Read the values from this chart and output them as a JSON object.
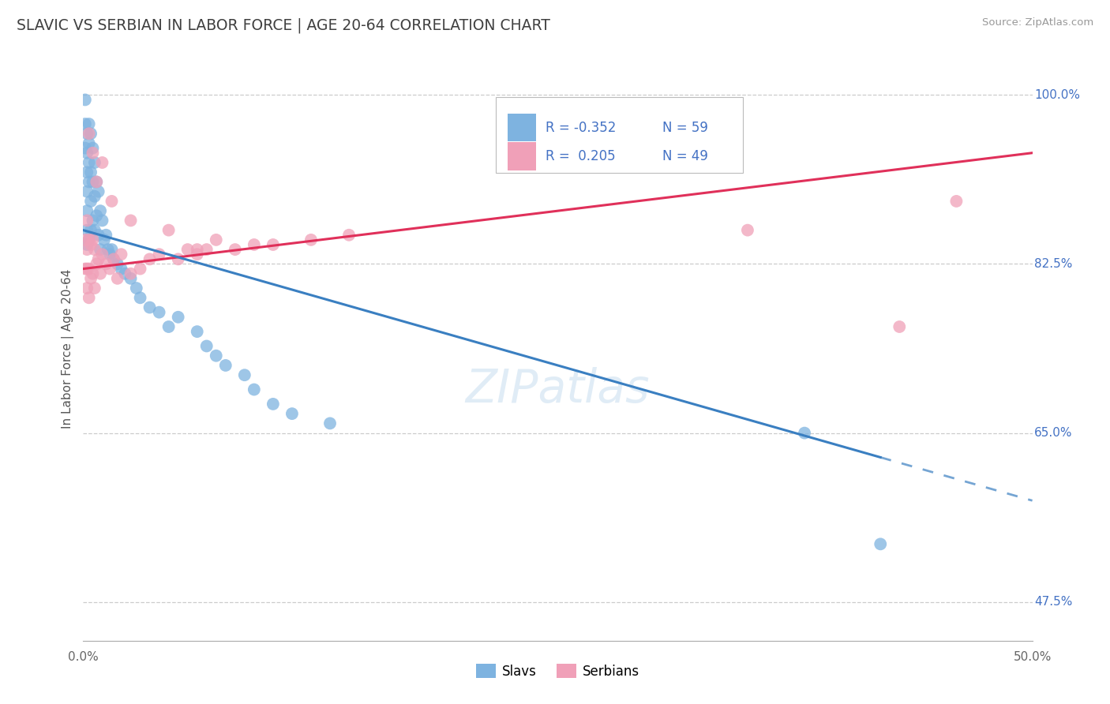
{
  "title": "SLAVIC VS SERBIAN IN LABOR FORCE | AGE 20-64 CORRELATION CHART",
  "source": "Source: ZipAtlas.com",
  "ylabel": "In Labor Force | Age 20-64",
  "xlim": [
    0.0,
    0.5
  ],
  "ylim": [
    0.435,
    1.04
  ],
  "xticks": [
    0.0,
    0.1,
    0.2,
    0.3,
    0.4,
    0.5
  ],
  "xticklabels": [
    "0.0%",
    "",
    "",
    "",
    "",
    "50.0%"
  ],
  "yticks": [
    0.475,
    0.65,
    0.825,
    1.0
  ],
  "yticklabels": [
    "47.5%",
    "65.0%",
    "82.5%",
    "100.0%"
  ],
  "color_slavs": "#7eb3e0",
  "color_serbians": "#f0a0b8",
  "color_trend_slavs": "#3a7fc1",
  "color_trend_serbians": "#e0305a",
  "color_title": "#404040",
  "color_axis_labels": "#555555",
  "color_tick_right": "#4472c4",
  "background_color": "#ffffff",
  "grid_color": "#cccccc",
  "slavs_x": [
    0.001,
    0.001,
    0.001,
    0.002,
    0.002,
    0.002,
    0.002,
    0.002,
    0.002,
    0.002,
    0.003,
    0.003,
    0.003,
    0.003,
    0.003,
    0.004,
    0.004,
    0.004,
    0.004,
    0.005,
    0.005,
    0.005,
    0.006,
    0.006,
    0.006,
    0.007,
    0.007,
    0.008,
    0.008,
    0.009,
    0.009,
    0.01,
    0.011,
    0.012,
    0.013,
    0.014,
    0.015,
    0.016,
    0.018,
    0.02,
    0.022,
    0.025,
    0.028,
    0.03,
    0.035,
    0.04,
    0.045,
    0.05,
    0.06,
    0.065,
    0.07,
    0.075,
    0.085,
    0.09,
    0.1,
    0.11,
    0.13,
    0.38,
    0.42
  ],
  "slavs_y": [
    0.945,
    0.97,
    0.995,
    0.96,
    0.94,
    0.92,
    0.9,
    0.88,
    0.86,
    0.845,
    0.97,
    0.95,
    0.93,
    0.91,
    0.85,
    0.96,
    0.92,
    0.89,
    0.86,
    0.945,
    0.91,
    0.87,
    0.93,
    0.895,
    0.86,
    0.91,
    0.875,
    0.9,
    0.855,
    0.88,
    0.84,
    0.87,
    0.85,
    0.855,
    0.84,
    0.835,
    0.84,
    0.83,
    0.825,
    0.82,
    0.815,
    0.81,
    0.8,
    0.79,
    0.78,
    0.775,
    0.76,
    0.77,
    0.755,
    0.74,
    0.73,
    0.72,
    0.71,
    0.695,
    0.68,
    0.67,
    0.66,
    0.65,
    0.535
  ],
  "serbians_x": [
    0.001,
    0.001,
    0.002,
    0.002,
    0.002,
    0.002,
    0.003,
    0.003,
    0.003,
    0.004,
    0.004,
    0.005,
    0.005,
    0.006,
    0.006,
    0.007,
    0.008,
    0.009,
    0.01,
    0.012,
    0.014,
    0.016,
    0.018,
    0.02,
    0.025,
    0.03,
    0.035,
    0.04,
    0.05,
    0.055,
    0.06,
    0.065,
    0.07,
    0.08,
    0.09,
    0.1,
    0.12,
    0.14,
    0.43,
    0.46,
    0.003,
    0.005,
    0.007,
    0.01,
    0.015,
    0.025,
    0.045,
    0.06,
    0.35
  ],
  "serbians_y": [
    0.85,
    0.82,
    0.87,
    0.84,
    0.82,
    0.8,
    0.85,
    0.82,
    0.79,
    0.845,
    0.81,
    0.85,
    0.815,
    0.84,
    0.8,
    0.825,
    0.83,
    0.815,
    0.835,
    0.825,
    0.82,
    0.83,
    0.81,
    0.835,
    0.815,
    0.82,
    0.83,
    0.835,
    0.83,
    0.84,
    0.835,
    0.84,
    0.85,
    0.84,
    0.845,
    0.845,
    0.85,
    0.855,
    0.76,
    0.89,
    0.96,
    0.94,
    0.91,
    0.93,
    0.89,
    0.87,
    0.86,
    0.84,
    0.86
  ],
  "trend_slavs_x0": 0.0,
  "trend_slavs_y0": 0.86,
  "trend_slavs_x1": 0.5,
  "trend_slavs_y1": 0.58,
  "trend_solid_end": 0.42,
  "trend_serbians_x0": 0.0,
  "trend_serbians_y0": 0.82,
  "trend_serbians_x1": 0.5,
  "trend_serbians_y1": 0.94
}
